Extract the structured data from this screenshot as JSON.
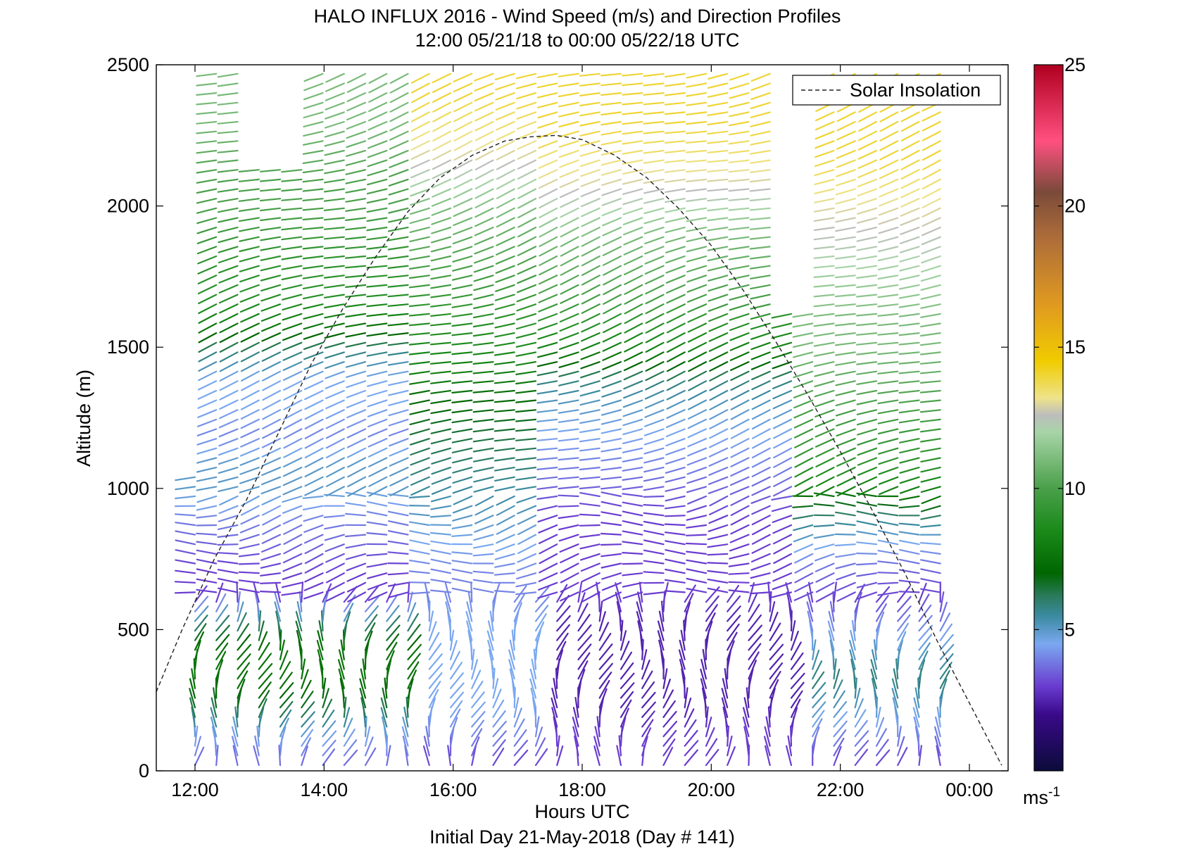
{
  "chart_data": {
    "type": "scatter",
    "title": "HALO INFLUX 2016 - Wind Speed (m/s) and Direction Profiles",
    "subtitle": "12:00 05/21/18 to 00:00 05/22/18  UTC",
    "xlabel": "Hours UTC",
    "ylabel": "Altitude (m)",
    "footer": "Initial Day 21-May-2018 (Day # 141)",
    "xlim": [
      11.4,
      24.6
    ],
    "ylim": [
      0,
      2500
    ],
    "xticks": [
      {
        "value": 12,
        "label": "12:00"
      },
      {
        "value": 14,
        "label": "14:00"
      },
      {
        "value": 16,
        "label": "16:00"
      },
      {
        "value": 18,
        "label": "18:00"
      },
      {
        "value": 20,
        "label": "20:00"
      },
      {
        "value": 22,
        "label": "22:00"
      },
      {
        "value": 24,
        "label": "00:00"
      }
    ],
    "yticks": [
      {
        "value": 0,
        "label": "0"
      },
      {
        "value": 500,
        "label": "500"
      },
      {
        "value": 1000,
        "label": "1000"
      },
      {
        "value": 1500,
        "label": "1500"
      },
      {
        "value": 2000,
        "label": "2000"
      },
      {
        "value": 2500,
        "label": "2500"
      }
    ],
    "legend": {
      "label": "Solar Insolation",
      "placement": "top-right"
    },
    "colorbar": {
      "min": 0,
      "max": 25,
      "unit": "ms-1",
      "ticks": [
        {
          "value": 5,
          "label": "5"
        },
        {
          "value": 10,
          "label": "10"
        },
        {
          "value": 15,
          "label": "15"
        },
        {
          "value": 20,
          "label": "20"
        },
        {
          "value": 25,
          "label": "25"
        }
      ],
      "stops": [
        {
          "v": 0,
          "c": "#0b0b3a"
        },
        {
          "v": 2,
          "c": "#3a0a8a"
        },
        {
          "v": 3,
          "c": "#6a3cd0"
        },
        {
          "v": 4.5,
          "c": "#7aa8f0"
        },
        {
          "v": 5.5,
          "c": "#3a8aa0"
        },
        {
          "v": 6.2,
          "c": "#2a7a5a"
        },
        {
          "v": 7,
          "c": "#006600"
        },
        {
          "v": 8.5,
          "c": "#1a8a1a"
        },
        {
          "v": 10,
          "c": "#4aa04a"
        },
        {
          "v": 12,
          "c": "#a8d4a8"
        },
        {
          "v": 12.6,
          "c": "#bdbdbd"
        },
        {
          "v": 13.2,
          "c": "#eee38a"
        },
        {
          "v": 14.5,
          "c": "#f0cc00"
        },
        {
          "v": 16.5,
          "c": "#e09a20"
        },
        {
          "v": 19,
          "c": "#aa6a3a"
        },
        {
          "v": 20.5,
          "c": "#7a4a3a"
        },
        {
          "v": 22.3,
          "c": "#ff5080"
        },
        {
          "v": 25,
          "c": "#b00020"
        }
      ]
    },
    "series": [
      {
        "name": "Solar Insolation",
        "style": "dashed",
        "points": [
          {
            "x": 11.4,
            "y": 280
          },
          {
            "x": 11.8,
            "y": 500
          },
          {
            "x": 12.3,
            "y": 750
          },
          {
            "x": 12.8,
            "y": 960
          },
          {
            "x": 13.3,
            "y": 1200
          },
          {
            "x": 13.8,
            "y": 1440
          },
          {
            "x": 14.3,
            "y": 1640
          },
          {
            "x": 14.8,
            "y": 1820
          },
          {
            "x": 15.3,
            "y": 1980
          },
          {
            "x": 15.8,
            "y": 2100
          },
          {
            "x": 16.3,
            "y": 2180
          },
          {
            "x": 16.8,
            "y": 2230
          },
          {
            "x": 17.2,
            "y": 2245
          },
          {
            "x": 17.6,
            "y": 2250
          },
          {
            "x": 18.0,
            "y": 2235
          },
          {
            "x": 18.5,
            "y": 2180
          },
          {
            "x": 19.0,
            "y": 2100
          },
          {
            "x": 19.5,
            "y": 1990
          },
          {
            "x": 20.0,
            "y": 1860
          },
          {
            "x": 20.5,
            "y": 1700
          },
          {
            "x": 21.0,
            "y": 1520
          },
          {
            "x": 21.5,
            "y": 1330
          },
          {
            "x": 22.0,
            "y": 1130
          },
          {
            "x": 22.5,
            "y": 920
          },
          {
            "x": 23.0,
            "y": 700
          },
          {
            "x": 23.5,
            "y": 460
          },
          {
            "x": 24.0,
            "y": 240
          },
          {
            "x": 24.5,
            "y": 20
          }
        ]
      }
    ],
    "wind_barbs": {
      "x_start": 12.0,
      "x_end": 23.8,
      "x_step": 0.33,
      "altitudes": [
        0,
        100,
        200,
        300,
        400,
        500,
        600,
        700,
        800,
        900,
        1000,
        1100,
        1200,
        1300,
        1400,
        1500,
        1600,
        1700,
        1800,
        1900,
        2000,
        2100,
        2200,
        2300,
        2400,
        2500
      ],
      "speed_profiles": [
        {
          "from_hour": 12.0,
          "to_hour": 15.4,
          "speeds": [
            3.5,
            4.5,
            6.5,
            7.5,
            7.5,
            6,
            3,
            3,
            3.5,
            4,
            5,
            5,
            4,
            4.5,
            4.5,
            6,
            8,
            9,
            9,
            9.5,
            10,
            10,
            10.5,
            11,
            11,
            11
          ]
        },
        {
          "from_hour": 15.4,
          "to_hour": 17.6,
          "speeds": [
            3,
            4,
            4.5,
            4.5,
            4.5,
            4.5,
            4,
            4,
            4.5,
            5,
            5.5,
            6,
            6.5,
            7,
            8,
            8.5,
            9,
            9.5,
            10,
            10.5,
            11,
            12,
            13,
            13.5,
            14,
            14
          ]
        },
        {
          "from_hour": 17.6,
          "to_hour": 21.3,
          "speeds": [
            3,
            3,
            2.5,
            2.5,
            2.5,
            2.5,
            3,
            3,
            3,
            3,
            3.5,
            4,
            4.5,
            5,
            6,
            8,
            9,
            10,
            10.5,
            11,
            12,
            13,
            13.5,
            14,
            14,
            14
          ]
        },
        {
          "from_hour": 21.3,
          "to_hour": 23.8,
          "speeds": [
            3,
            4,
            5,
            6,
            5,
            4,
            3,
            3.5,
            4.5,
            6,
            8,
            9,
            9.5,
            10,
            10.5,
            11,
            11,
            11.5,
            12,
            12.5,
            13,
            13.5,
            14,
            14,
            14,
            14
          ]
        }
      ],
      "missing": [
        {
          "from_hour": 12.9,
          "to_hour": 13.9,
          "alt_from": 2150,
          "alt_to": 2500
        },
        {
          "from_hour": 21.2,
          "to_hour": 21.6,
          "alt_from": 1650,
          "alt_to": 2500
        },
        {
          "from_hour": 18.3,
          "to_hour": 18.4,
          "alt_from": 0,
          "alt_to": 200
        }
      ]
    }
  }
}
